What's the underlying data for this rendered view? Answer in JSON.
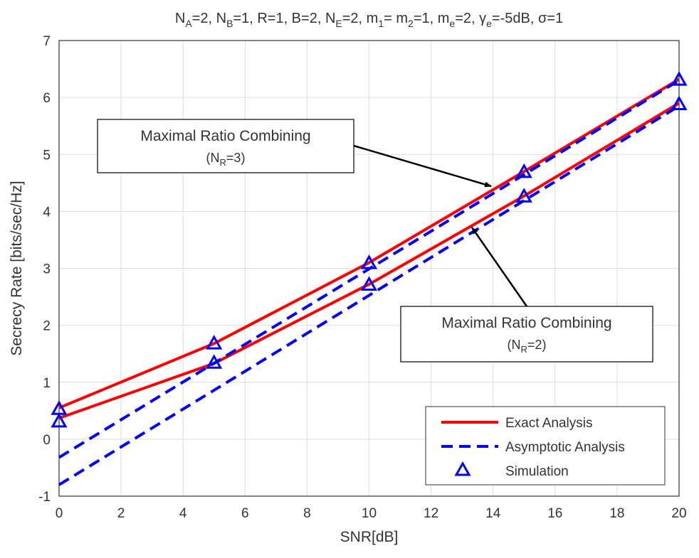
{
  "chart_data": {
    "type": "line",
    "title": [
      "N",
      "A",
      "=2, N",
      "B",
      "=1, R=1, B=2, N",
      "E",
      "=2, m",
      "1",
      "= m",
      "2",
      "=1, m",
      "e",
      "=2, γ",
      "e",
      "=-5dB, σ=1"
    ],
    "xlabel": "SNR[dB]",
    "ylabel": "Secrecy Rate [bits/sec/Hz]",
    "x": [
      0,
      5,
      10,
      15,
      20
    ],
    "series": [
      {
        "name": "Exact Analysis",
        "color": "#ff0000",
        "dashed": false,
        "marker": false,
        "values": [
          [
            0.55,
            1.68,
            3.1,
            4.7,
            6.32
          ],
          [
            0.37,
            1.33,
            2.72,
            4.27,
            5.9
          ]
        ]
      },
      {
        "name": "Asymptotic Analysis",
        "color": "#0000ff",
        "dashed": true,
        "marker": false,
        "values": [
          [
            -0.32,
            1.335,
            2.99,
            4.645,
            6.3
          ],
          [
            -0.8,
            0.86,
            2.525,
            4.19,
            5.85
          ]
        ]
      },
      {
        "name": "Simulation",
        "color": "#0000ff",
        "dashed": false,
        "marker": true,
        "values": [
          [
            0.52,
            1.67,
            3.08,
            4.68,
            6.3
          ],
          [
            0.3,
            1.33,
            2.7,
            4.25,
            5.87
          ]
        ]
      }
    ],
    "annotations": [
      {
        "text": "Maximal Ratio Combining",
        "sub": [
          "(N",
          "R",
          "=3)"
        ]
      },
      {
        "text": "Maximal Ratio Combining",
        "sub": [
          "(N",
          "R",
          "=2)"
        ]
      }
    ],
    "xlim": [
      0,
      20
    ],
    "xticks": [
      0,
      2,
      4,
      6,
      8,
      10,
      12,
      14,
      16,
      18,
      20
    ],
    "ylim": [
      -1,
      7
    ],
    "yticks": [
      -1,
      0,
      1,
      2,
      3,
      4,
      5,
      6,
      7
    ],
    "grid": true,
    "legend": "lower right"
  }
}
